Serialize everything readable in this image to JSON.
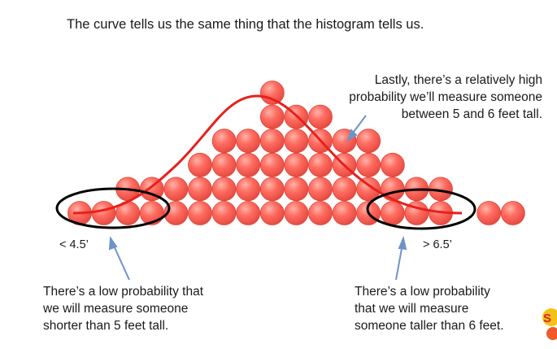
{
  "title": "The curve tells us the same thing that the histogram tells us.",
  "annotations": {
    "top_right": [
      "Lastly, there’s a relatively high",
      "probability we’ll measure someone",
      "between 5 and 6 feet tall."
    ],
    "label_left": "< 4.5’",
    "label_right": "> 6.5’",
    "bottom_left": [
      "There’s a low probability that",
      "we will measure someone",
      "shorter than 5 feet tall."
    ],
    "bottom_right": [
      "There’s a low probability",
      "that we will measure",
      "someone taller than 6 feet."
    ]
  },
  "histogram": {
    "column_counts": [
      1,
      1,
      2,
      2,
      2,
      3,
      4,
      4,
      6,
      5,
      5,
      4,
      4,
      3,
      2,
      2,
      0,
      1,
      1
    ]
  },
  "colors": {
    "ball": "#ff6a60",
    "ball_edge": "#e0443b",
    "curve": "#e8201b",
    "arrow": "#6f93c6",
    "ellipse": "#000000"
  }
}
